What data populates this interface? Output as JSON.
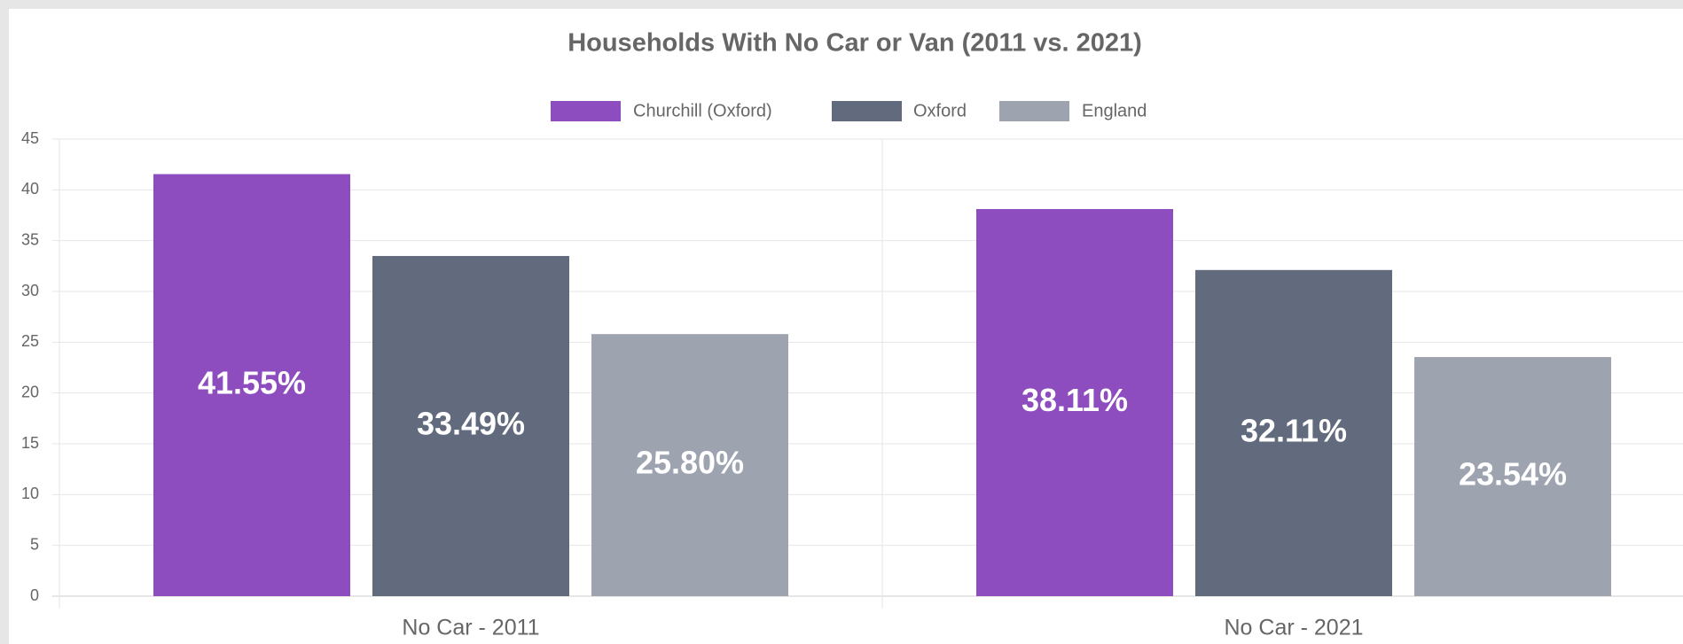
{
  "chart_data": {
    "type": "bar",
    "title": "Households With No Car or Van (2011 vs. 2021)",
    "categories": [
      "No Car - 2011",
      "No Car - 2021"
    ],
    "series": [
      {
        "name": "Churchill (Oxford)",
        "color": "#8e4dbf",
        "values": [
          41.55,
          38.11
        ],
        "value_labels": [
          "41.55%",
          "38.11%"
        ]
      },
      {
        "name": "Oxford",
        "color": "#626b7d",
        "values": [
          33.49,
          32.11
        ],
        "value_labels": [
          "33.49%",
          "32.11%"
        ]
      },
      {
        "name": "England",
        "color": "#9ea3b0",
        "values": [
          25.8,
          23.54
        ],
        "value_labels": [
          "25.80%",
          "23.54%"
        ]
      }
    ],
    "ylim": [
      0,
      45
    ],
    "yticks": [
      0,
      5,
      10,
      15,
      20,
      25,
      30,
      35,
      40,
      45
    ],
    "grid": true,
    "legend": "top"
  }
}
